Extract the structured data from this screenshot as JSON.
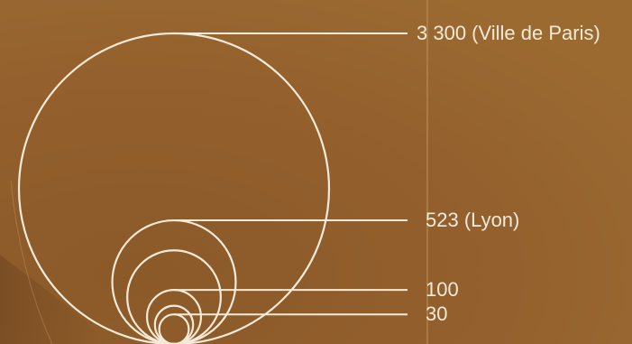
{
  "chart_data": {
    "type": "proportional-circles",
    "title": "",
    "series": [
      {
        "value": 3300,
        "label": "3 300 (Ville de Paris)"
      },
      {
        "value": 523,
        "label": "523 (Lyon)"
      },
      {
        "value": 300,
        "label": ""
      },
      {
        "value": 100,
        "label": "100"
      },
      {
        "value": 50,
        "label": ""
      },
      {
        "value": 30,
        "label": "30"
      }
    ],
    "colors": {
      "background": "#8f622b",
      "stroke": "#f4ead8",
      "vertical_line": "#b89157"
    }
  }
}
